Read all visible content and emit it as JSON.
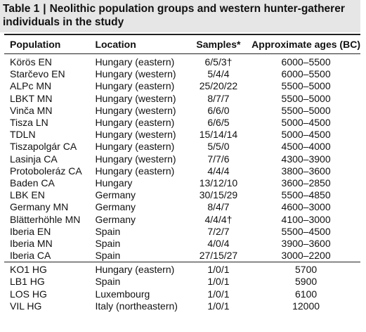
{
  "table": {
    "label": "Table 1",
    "title": "Neolithic population groups and western hunter-gatherer individuals in the study",
    "headers": [
      "Population",
      "Location",
      "Samples*",
      "Approximate ages (BC)"
    ],
    "groups": [
      {
        "rows": [
          [
            "Körös EN",
            "Hungary (eastern)",
            "6/5/3†",
            "6000–5500"
          ],
          [
            "Starčevo EN",
            "Hungary (western)",
            "5/4/4",
            "6000–5500"
          ],
          [
            "ALPc MN",
            "Hungary (eastern)",
            "25/20/22",
            "5500–5000"
          ],
          [
            "LBKT MN",
            "Hungary (western)",
            "8/7/7",
            "5500–5000"
          ],
          [
            "Vinča MN",
            "Hungary (western)",
            "6/6/0",
            "5500–5000"
          ],
          [
            "Tisza LN",
            "Hungary (eastern)",
            "6/6/5",
            "5000–4500"
          ],
          [
            "TDLN",
            "Hungary (western)",
            "15/14/14",
            "5000–4500"
          ],
          [
            "Tiszapolgár CA",
            "Hungary (eastern)",
            "5/5/0",
            "4500–4000"
          ],
          [
            "Lasinja CA",
            "Hungary (western)",
            "7/7/6",
            "4300–3900"
          ],
          [
            "Protoboleráz CA",
            "Hungary (eastern)",
            "4/4/4",
            "3800–3600"
          ],
          [
            "Baden CA",
            "Hungary",
            "13/12/10",
            "3600–2850"
          ],
          [
            "LBK EN",
            "Germany",
            "30/15/29",
            "5500–4850"
          ],
          [
            "Germany MN",
            "Germany",
            "8/4/7",
            "4600–3000"
          ],
          [
            "Blätterhöhle MN",
            "Germany",
            "4/4/4†",
            "4100–3000"
          ],
          [
            "Iberia EN",
            "Spain",
            "7/2/7",
            "5500–4500"
          ],
          [
            "Iberia MN",
            "Spain",
            "4/0/4",
            "3900–3600"
          ],
          [
            "Iberia CA",
            "Spain",
            "27/15/27",
            "3000–2200"
          ]
        ]
      },
      {
        "rows": [
          [
            "KO1 HG",
            "Hungary (eastern)",
            "1/0/1",
            "5700"
          ],
          [
            "LB1 HG",
            "Spain",
            "1/0/1",
            "5900"
          ],
          [
            "LOS HG",
            "Luxembourg",
            "1/0/1",
            "6100"
          ],
          [
            "VIL HG",
            "Italy (northeastern)",
            "1/0/1",
            "12000"
          ]
        ]
      }
    ]
  }
}
